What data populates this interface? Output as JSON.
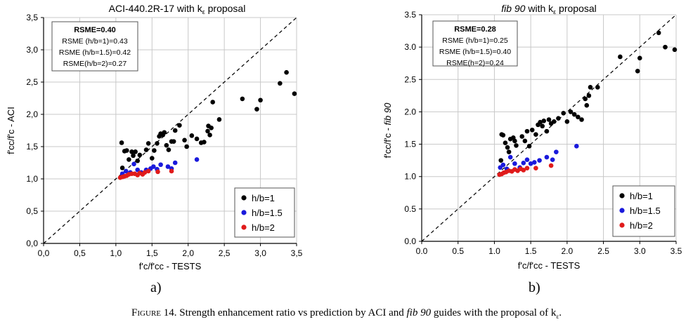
{
  "colors": {
    "h1": "#000000",
    "h15": "#1a1adc",
    "h2": "#e01b1b"
  },
  "panels": [
    {
      "label": "a)",
      "title_main": "ACI-440.2R-17 with k",
      "title_sub": "ε",
      "title_tail": " proposal",
      "stats": [
        "RSME=0.40",
        "RSME (h/b=1)=0.43",
        "RSME (h/b=1.5)=0.42",
        "RSME(h/b=2)=0.27"
      ],
      "ylabel_main": "f'cc/f'c - ACI",
      "ylabel_ital": "",
      "xlabel": "f'c/f'cc - TESTS",
      "tick_labels": [
        "0,0",
        "0,5",
        "1,0",
        "1,5",
        "2,0",
        "2,5",
        "3,0",
        "3,5"
      ],
      "legend": [
        "h/b=1",
        "h/b=1.5",
        "h/b=2"
      ]
    },
    {
      "label": "b)",
      "title_main": "fib 90",
      "title_mid": " with k",
      "title_sub": "ε",
      "title_tail": " proposal",
      "stats": [
        "RSME=0.28",
        "RSME (h/b=1)=0.25",
        "RSME (h/b=1.5)=0.40",
        "RSME(h=2)=0.24"
      ],
      "ylabel_main": "f'cc/f'c - ",
      "ylabel_ital": "fib 90",
      "xlabel": "f'c/f'cc - TESTS",
      "tick_labels": [
        "0.0",
        "0.5",
        "1.0",
        "1.5",
        "2.0",
        "2.5",
        "3.0",
        "3.5"
      ],
      "legend": [
        "h/b=1",
        "h/b=1.5",
        "h/b=2"
      ]
    }
  ],
  "caption": {
    "fig": "Figure 14.",
    "text1": " Strength enhancement ratio vs prediction by ACI and ",
    "ital": "fib 90",
    "text2": " guides with the proposal of k",
    "sub": "ε",
    "end": "."
  },
  "chart_data": [
    {
      "type": "scatter",
      "title": "ACI-440.2R-17 with kε proposal",
      "xlabel": "f'c/f'cc - TESTS",
      "ylabel": "f'cc/f'c - ACI",
      "xlim": [
        0,
        3.5
      ],
      "ylim": [
        0,
        3.5
      ],
      "grid": true,
      "legend_position": "bottom-right",
      "reference_line": "y = x (dashed)",
      "series": [
        {
          "name": "h/b=1",
          "points": [
            [
              1.08,
              1.56
            ],
            [
              1.09,
              1.17
            ],
            [
              1.12,
              1.43
            ],
            [
              1.15,
              1.44
            ],
            [
              1.18,
              1.3
            ],
            [
              1.22,
              1.42
            ],
            [
              1.24,
              1.36
            ],
            [
              1.27,
              1.42
            ],
            [
              1.3,
              1.28
            ],
            [
              1.33,
              1.37
            ],
            [
              1.42,
              1.45
            ],
            [
              1.45,
              1.55
            ],
            [
              1.5,
              1.32
            ],
            [
              1.53,
              1.44
            ],
            [
              1.57,
              1.55
            ],
            [
              1.6,
              1.66
            ],
            [
              1.62,
              1.7
            ],
            [
              1.65,
              1.68
            ],
            [
              1.67,
              1.72
            ],
            [
              1.7,
              1.52
            ],
            [
              1.73,
              1.45
            ],
            [
              1.77,
              1.58
            ],
            [
              1.8,
              1.58
            ],
            [
              1.82,
              1.75
            ],
            [
              1.88,
              1.83
            ],
            [
              1.95,
              1.6
            ],
            [
              1.98,
              1.5
            ],
            [
              2.05,
              1.67
            ],
            [
              2.12,
              1.62
            ],
            [
              2.18,
              1.56
            ],
            [
              2.22,
              1.57
            ],
            [
              2.27,
              1.74
            ],
            [
              2.28,
              1.82
            ],
            [
              2.3,
              1.68
            ],
            [
              2.32,
              1.79
            ],
            [
              2.34,
              2.19
            ],
            [
              2.43,
              1.92
            ],
            [
              2.75,
              2.24
            ],
            [
              2.95,
              2.08
            ],
            [
              3.0,
              2.22
            ],
            [
              3.27,
              2.48
            ],
            [
              3.36,
              2.65
            ],
            [
              3.47,
              2.32
            ]
          ]
        },
        {
          "name": "h/b=1.5",
          "points": [
            [
              1.09,
              1.08
            ],
            [
              1.14,
              1.12
            ],
            [
              1.2,
              1.1
            ],
            [
              1.25,
              1.23
            ],
            [
              1.3,
              1.14
            ],
            [
              1.35,
              1.1
            ],
            [
              1.42,
              1.14
            ],
            [
              1.48,
              1.16
            ],
            [
              1.52,
              1.19
            ],
            [
              1.57,
              1.15
            ],
            [
              1.62,
              1.22
            ],
            [
              1.72,
              1.19
            ],
            [
              1.77,
              1.16
            ],
            [
              1.82,
              1.25
            ],
            [
              2.12,
              1.3
            ]
          ]
        },
        {
          "name": "h/b=2",
          "points": [
            [
              1.06,
              1.02
            ],
            [
              1.09,
              1.03
            ],
            [
              1.12,
              1.04
            ],
            [
              1.15,
              1.05
            ],
            [
              1.18,
              1.07
            ],
            [
              1.22,
              1.08
            ],
            [
              1.26,
              1.08
            ],
            [
              1.3,
              1.06
            ],
            [
              1.33,
              1.09
            ],
            [
              1.37,
              1.07
            ],
            [
              1.4,
              1.1
            ],
            [
              1.45,
              1.12
            ],
            [
              1.58,
              1.11
            ],
            [
              1.77,
              1.12
            ]
          ]
        }
      ]
    },
    {
      "type": "scatter",
      "title": "fib 90 with kε proposal",
      "xlabel": "f'c/f'cc - TESTS",
      "ylabel": "f'cc/f'c - fib 90",
      "xlim": [
        0,
        3.5
      ],
      "ylim": [
        0,
        3.5
      ],
      "grid": true,
      "legend_position": "bottom-right",
      "reference_line": "y = x (dashed)",
      "series": [
        {
          "name": "h/b=1",
          "points": [
            [
              1.09,
              1.25
            ],
            [
              1.1,
              1.65
            ],
            [
              1.12,
              1.64
            ],
            [
              1.15,
              1.52
            ],
            [
              1.18,
              1.45
            ],
            [
              1.2,
              1.38
            ],
            [
              1.22,
              1.58
            ],
            [
              1.26,
              1.6
            ],
            [
              1.28,
              1.55
            ],
            [
              1.3,
              1.48
            ],
            [
              1.38,
              1.62
            ],
            [
              1.42,
              1.55
            ],
            [
              1.45,
              1.7
            ],
            [
              1.48,
              1.47
            ],
            [
              1.52,
              1.72
            ],
            [
              1.57,
              1.65
            ],
            [
              1.6,
              1.8
            ],
            [
              1.63,
              1.84
            ],
            [
              1.66,
              1.78
            ],
            [
              1.68,
              1.86
            ],
            [
              1.72,
              1.7
            ],
            [
              1.75,
              1.88
            ],
            [
              1.78,
              1.82
            ],
            [
              1.82,
              1.85
            ],
            [
              1.88,
              1.9
            ],
            [
              1.95,
              1.98
            ],
            [
              2.0,
              1.85
            ],
            [
              2.05,
              2.0
            ],
            [
              2.1,
              1.96
            ],
            [
              2.15,
              1.92
            ],
            [
              2.2,
              1.88
            ],
            [
              2.25,
              2.2
            ],
            [
              2.27,
              2.1
            ],
            [
              2.3,
              2.25
            ],
            [
              2.32,
              2.38
            ],
            [
              2.42,
              2.38
            ],
            [
              2.73,
              2.85
            ],
            [
              2.97,
              2.63
            ],
            [
              3.0,
              2.83
            ],
            [
              3.26,
              3.22
            ],
            [
              3.35,
              3.0
            ],
            [
              3.48,
              2.96
            ]
          ]
        },
        {
          "name": "h/b=1.5",
          "points": [
            [
              1.08,
              1.14
            ],
            [
              1.12,
              1.18
            ],
            [
              1.17,
              1.12
            ],
            [
              1.22,
              1.3
            ],
            [
              1.28,
              1.2
            ],
            [
              1.35,
              1.14
            ],
            [
              1.4,
              1.21
            ],
            [
              1.45,
              1.26
            ],
            [
              1.5,
              1.2
            ],
            [
              1.55,
              1.22
            ],
            [
              1.62,
              1.25
            ],
            [
              1.72,
              1.3
            ],
            [
              1.8,
              1.26
            ],
            [
              1.85,
              1.38
            ],
            [
              2.13,
              1.47
            ]
          ]
        },
        {
          "name": "h/b=2",
          "points": [
            [
              1.07,
              1.03
            ],
            [
              1.1,
              1.04
            ],
            [
              1.13,
              1.06
            ],
            [
              1.16,
              1.07
            ],
            [
              1.2,
              1.09
            ],
            [
              1.24,
              1.08
            ],
            [
              1.28,
              1.11
            ],
            [
              1.32,
              1.09
            ],
            [
              1.36,
              1.12
            ],
            [
              1.4,
              1.1
            ],
            [
              1.45,
              1.13
            ],
            [
              1.57,
              1.13
            ],
            [
              1.78,
              1.17
            ]
          ]
        }
      ]
    }
  ]
}
